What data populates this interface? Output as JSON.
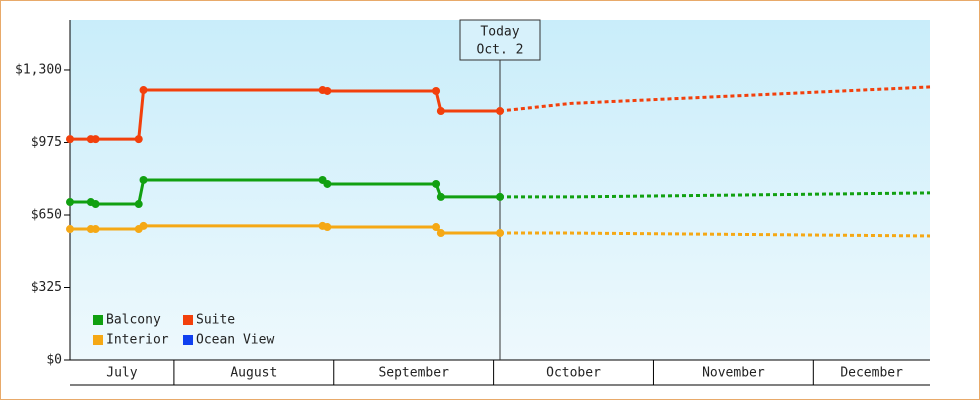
{
  "chart_data": {
    "type": "line",
    "annotation": {
      "title": "Today",
      "label": "Oct. 2",
      "x": 10.04
    },
    "months": [
      "July",
      "August",
      "September",
      "October",
      "November",
      "December"
    ],
    "x": [
      7.35,
      7.48,
      7.51,
      7.78,
      7.81,
      8.93,
      8.96,
      9.64,
      9.67,
      10.04,
      10.48,
      12.73
    ],
    "xlim": [
      7.35,
      12.73
    ],
    "ylim": [
      0,
      1524
    ],
    "yticks": [
      {
        "value": 0,
        "label": "$0"
      },
      {
        "value": 325,
        "label": "$325"
      },
      {
        "value": 650,
        "label": "$650"
      },
      {
        "value": 975,
        "label": "$975"
      },
      {
        "value": 1300,
        "label": "$1,300"
      }
    ],
    "series": [
      {
        "name": "Balcony",
        "color": "#11a011",
        "values": [
          708,
          708,
          699,
          699,
          807,
          807,
          789,
          789,
          731,
          731,
          null,
          null
        ],
        "forecast": [
          null,
          null,
          null,
          null,
          null,
          null,
          null,
          null,
          null,
          731,
          731,
          749
        ]
      },
      {
        "name": "Suite",
        "color": "#f2400c",
        "values": [
          990,
          990,
          990,
          990,
          1210,
          1210,
          1206,
          1206,
          1116,
          1116,
          null,
          null
        ],
        "forecast": [
          null,
          null,
          null,
          null,
          null,
          null,
          null,
          null,
          null,
          1116,
          1150,
          1224
        ]
      },
      {
        "name": "Interior",
        "color": "#f5a815",
        "values": [
          587,
          587,
          587,
          587,
          601,
          601,
          596,
          596,
          569,
          569,
          null,
          null
        ],
        "forecast": [
          null,
          null,
          null,
          null,
          null,
          null,
          null,
          null,
          null,
          569,
          569,
          556
        ]
      },
      {
        "name": "Ocean View",
        "color": "#1040f0",
        "values": [
          null,
          null,
          null,
          null,
          null,
          null,
          null,
          null,
          null,
          null,
          null,
          null
        ],
        "forecast": [
          null,
          null,
          null,
          null,
          null,
          null,
          null,
          null,
          null,
          null,
          null,
          null
        ]
      }
    ]
  }
}
